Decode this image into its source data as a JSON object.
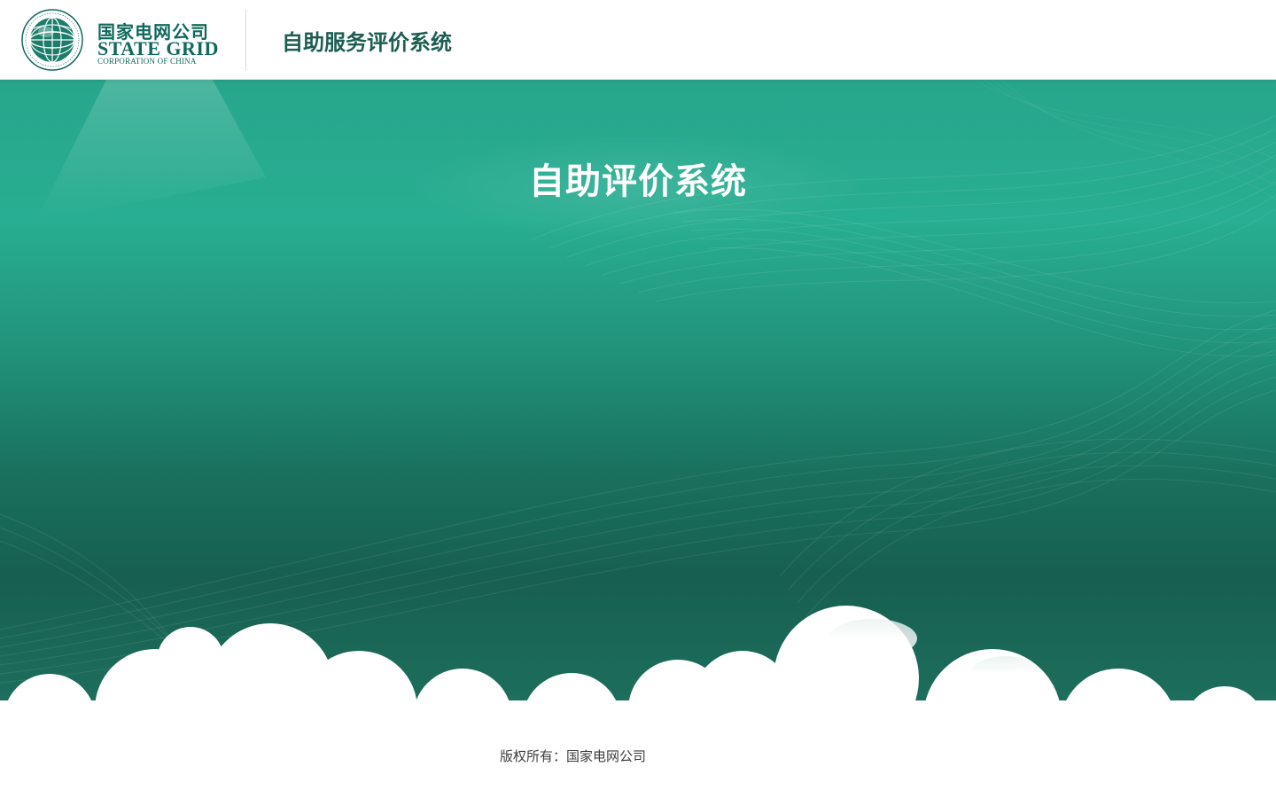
{
  "header": {
    "logo_cn": "国家电网公司",
    "logo_en": "STATE GRID",
    "logo_en_sub": "CORPORATION OF CHINA",
    "logo_ring_text": "STATE GRID CORPORATION OF CHINA 国家电网公司",
    "title": "自助服务评价系统"
  },
  "hero": {
    "title": "自助评价系统"
  },
  "footer": {
    "copyright": "版权所有：国家电网公司"
  },
  "colors": {
    "brand_green": "#0f6a5c",
    "hero_top": "#28ae92",
    "hero_bottom": "#175f4f",
    "header_title": "#1d5e52"
  },
  "icons": {
    "logo_emblem": "state-grid-globe-icon"
  }
}
